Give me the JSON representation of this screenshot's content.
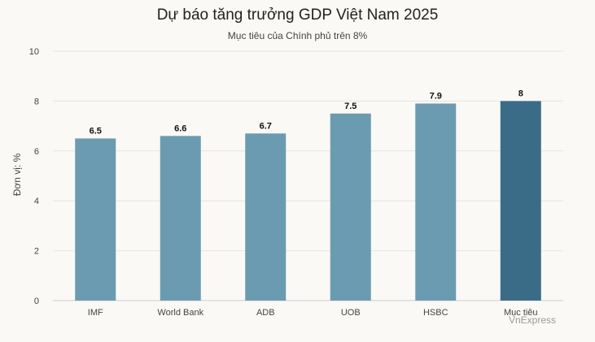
{
  "chart_data": {
    "type": "bar",
    "title": "Dự báo tăng trưởng GDP Việt Nam 2025",
    "subtitle": "Mục tiêu của Chính phủ trên 8%",
    "ylabel": "Đơn vị: %",
    "xlabel": "",
    "categories": [
      "IMF",
      "World Bank",
      "ADB",
      "UOB",
      "HSBC",
      "Mục tiêu"
    ],
    "values": [
      6.5,
      6.6,
      6.7,
      7.5,
      7.9,
      8
    ],
    "data_labels": [
      "6.5",
      "6.6",
      "6.7",
      "7.5",
      "7.9",
      "8"
    ],
    "ylim": [
      0,
      10
    ],
    "yticks": [
      "0",
      "2",
      "4",
      "6",
      "8",
      "10"
    ],
    "grid": true,
    "legend": "none",
    "colors": {
      "bar": "#6b9bb0",
      "highlight": "#3b6c87",
      "grid": "#e4e4e4",
      "axis": "#cccccc"
    },
    "highlight_index": 5
  },
  "source": "VnExpress"
}
